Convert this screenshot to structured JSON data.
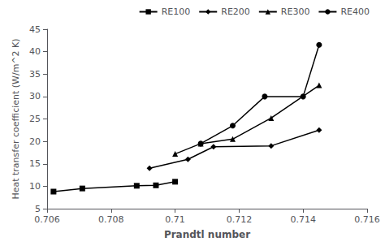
{
  "chart_data": {
    "type": "line",
    "xlabel": "Prandtl number",
    "ylabel": "Heat transfer coefficient (W/m^2 K)",
    "series": [
      {
        "name": "RE100",
        "color": "#000000",
        "marker": "square",
        "line_style": "solid",
        "x": [
          0.7062,
          0.7071,
          0.7088,
          0.7094,
          0.71
        ],
        "values": [
          8.8,
          9.5,
          10.1,
          10.2,
          11.0
        ]
      },
      {
        "name": "RE200",
        "color": "#000000",
        "marker": "diamond",
        "line_style": "solid",
        "x": [
          0.7092,
          0.7104,
          0.7112,
          0.713,
          0.7145
        ],
        "values": [
          14.0,
          16.0,
          18.8,
          19.0,
          22.5
        ]
      },
      {
        "name": "RE300",
        "color": "#000000",
        "marker": "triangle",
        "line_style": "solid",
        "x": [
          0.71,
          0.7108,
          0.7118,
          0.713,
          0.7145
        ],
        "values": [
          17.2,
          19.5,
          20.5,
          25.2,
          32.5
        ]
      },
      {
        "name": "RE400",
        "color": "#000000",
        "marker": "circle",
        "line_style": "solid",
        "x": [
          0.7108,
          0.7118,
          0.7128,
          0.714,
          0.7145
        ],
        "values": [
          19.5,
          23.5,
          30.0,
          30.0,
          41.5
        ]
      }
    ],
    "xlim": [
      0.706,
      0.716
    ],
    "xticks": [
      0.706,
      0.708,
      0.71,
      0.712,
      0.714,
      0.716
    ],
    "ylim": [
      5,
      45
    ],
    "yticks": [
      5,
      10,
      15,
      20,
      25,
      30,
      35,
      40,
      45
    ],
    "grid": false,
    "legend": "upper right"
  }
}
